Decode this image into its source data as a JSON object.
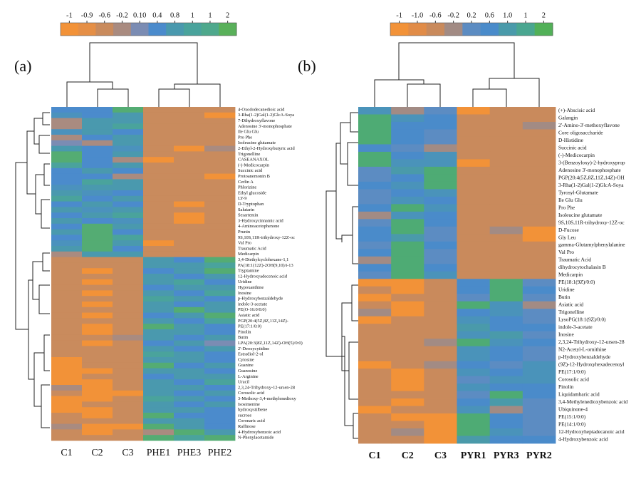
{
  "chart_data": [
    {
      "type": "heatmap",
      "panel_label": "(a)",
      "colorbar_ticks": [
        -1,
        -0.9,
        -0.6,
        -0.2,
        {
          "value": 0.1,
          "label": "0.10"
        },
        0.4,
        0.8,
        1,
        1,
        2
      ],
      "colorbar_colors": [
        "#f29238",
        "#e58f46",
        "#c98b5d",
        "#a98b80",
        "#7b8cb3",
        "#4b8bcc",
        "#4a99ae",
        "#4aa39c",
        "#4ea88c",
        "#59b05a"
      ],
      "columns": [
        "C1",
        "C2",
        "C3",
        "PHE1",
        "PHE3",
        "PHE2"
      ],
      "rows": [
        "4-Oxododecanedioic acid",
        "3-Rha(1-2)Gal(1-2)GlcA-Soya",
        "7-Dihydroxyflavone",
        "Adenosine 3'-monophosphate",
        "Ile Glu Glu",
        "Pro Phe",
        "Isoleucine glutamate",
        "2-Ethyl-2-Hydroxybutyric acid",
        "Trigonelline",
        "CASEANAXOL",
        "(-)-Medicocarpin",
        "Succinic acid",
        "Protoanemonin B",
        "Cerlin A",
        "Phlorizine",
        "Ethyl glucoside",
        "LY-9",
        "D-Tryptophan",
        "Salutarin",
        "Sesartemin",
        "3-Hydroxycinnamic acid",
        "4-Aminoacetophenone",
        "Prunin",
        "9S,10S,11R-trihydroxy-12Z-oc",
        "Val Pro",
        "Traumatic Acid",
        "Medicarpin",
        "3,4-Diethylcyclohexane-1,1",
        "PA(18:1(12Z)-2OH(9,10)/i-13",
        "Tryptamine",
        "12-Hydroxyadecenoic acid",
        "Uridine",
        "Hypoxanthine",
        "Inosine",
        "p-Hydroxybenzaldehyde",
        "indole-3-acetate",
        "PE(O-16:0/0:0)",
        "Asiatic acid",
        "PGP(20:4(5Z,8Z,11Z,14Z)-",
        "PE(17:1/0:0)",
        "Pinolin",
        "Butin",
        "LPA(20:3(8Z,11Z,14Z)-OH(5)/0:0)",
        "2'-Deoxycytidine",
        "Estradiol-2-ol",
        "Cytosine",
        "Guanine",
        "Guanosine",
        "L-Arginine",
        "Uracil",
        "2,3,24-Trihydroxy-12-ursen-28",
        "Corosolic acid",
        "3-Methoxy-3,4-methylenedioxy",
        "Isosimenine",
        "hydroxystilbene",
        "sucrose",
        "Coronaric acid",
        "Raffinose",
        "4-Hydroxybenzoic acid",
        "N-Phenylacetamide"
      ],
      "values": [
        [
          0.4,
          0.4,
          1.5,
          -0.6,
          -0.6,
          -0.6
        ],
        [
          0.6,
          0.4,
          0.8,
          -0.6,
          -0.6,
          -1
        ],
        [
          -0.2,
          0.8,
          0.8,
          -0.6,
          -0.6,
          -0.6
        ],
        [
          -0.2,
          0.8,
          1,
          -0.6,
          -0.6,
          -0.6
        ],
        [
          0.6,
          0.8,
          0.4,
          -0.6,
          -0.6,
          -0.6
        ],
        [
          -0.2,
          0.4,
          0.8,
          -0.6,
          -0.6,
          -0.6
        ],
        [
          0.1,
          -0.2,
          0.8,
          -0.6,
          -0.6,
          -0.6
        ],
        [
          0.8,
          0.4,
          0.6,
          -0.6,
          -1,
          -0.2
        ],
        [
          1.5,
          0.4,
          0.8,
          -0.6,
          -0.6,
          -0.6
        ],
        [
          1.5,
          0.4,
          -0.2,
          -1,
          -0.6,
          -0.6
        ],
        [
          1,
          0.4,
          0.8,
          -0.6,
          -0.6,
          -0.6
        ],
        [
          0.4,
          0.8,
          0.4,
          -0.6,
          -0.6,
          -0.6
        ],
        [
          0.4,
          0.4,
          -0.2,
          -0.6,
          -0.6,
          -1
        ],
        [
          0.4,
          1,
          0.8,
          -0.6,
          -0.6,
          -0.6
        ],
        [
          0.6,
          0.8,
          0.8,
          -0.6,
          -0.6,
          -0.6
        ],
        [
          0.8,
          0.6,
          0.4,
          -0.6,
          -0.6,
          -0.6
        ],
        [
          1,
          0.4,
          0.8,
          -0.6,
          -0.6,
          -0.6
        ],
        [
          0.4,
          0.8,
          0.4,
          -0.6,
          -1,
          -0.6
        ],
        [
          0.8,
          0.6,
          0.8,
          -0.6,
          -0.6,
          -0.6
        ],
        [
          0.4,
          0.8,
          1,
          -0.6,
          -1,
          -0.6
        ],
        [
          0.8,
          0.4,
          0.6,
          -0.6,
          -1,
          -0.6
        ],
        [
          0.4,
          1.5,
          0.8,
          -0.6,
          -0.6,
          -0.6
        ],
        [
          0.8,
          1.5,
          0.4,
          -0.6,
          -0.6,
          -0.6
        ],
        [
          0.4,
          1.5,
          1,
          -0.6,
          -0.6,
          -0.6
        ],
        [
          0.6,
          1.5,
          0.8,
          -1,
          -0.6,
          -0.6
        ],
        [
          0.8,
          1.5,
          0.4,
          -0.6,
          -0.6,
          -0.6
        ],
        [
          -0.2,
          0.8,
          0.8,
          -0.6,
          -0.6,
          -0.6
        ],
        [
          -0.6,
          -0.6,
          -0.6,
          0.8,
          0.4,
          1.5
        ],
        [
          -0.6,
          -0.6,
          -0.6,
          0.8,
          0.8,
          1
        ],
        [
          -0.6,
          -1,
          -0.6,
          0.4,
          0.8,
          1.5
        ],
        [
          -0.6,
          -0.6,
          -0.6,
          0.8,
          0.4,
          0.8
        ],
        [
          -0.6,
          -1,
          -0.6,
          0.8,
          1,
          0.4
        ],
        [
          -0.6,
          -0.6,
          -0.6,
          0.4,
          0.8,
          0.8
        ],
        [
          -0.6,
          -1,
          -0.6,
          0.8,
          0.4,
          1
        ],
        [
          -0.6,
          -0.6,
          -0.6,
          1,
          0.8,
          0.4
        ],
        [
          -0.6,
          -1,
          -0.6,
          0.8,
          0.4,
          0.8
        ],
        [
          -0.6,
          -0.6,
          -0.6,
          0.8,
          1.5,
          0.8
        ],
        [
          -0.6,
          -1,
          -0.6,
          0.4,
          0.8,
          1.5
        ],
        [
          -0.6,
          -0.6,
          -0.6,
          0.8,
          0.4,
          1
        ],
        [
          -0.6,
          -1,
          -0.6,
          1.5,
          0.8,
          0.4
        ],
        [
          -0.6,
          -1,
          -0.6,
          0.8,
          0.8,
          0.4
        ],
        [
          -0.6,
          -0.6,
          -0.2,
          0.8,
          0.4,
          0.8
        ],
        [
          -0.6,
          -1,
          -0.6,
          0.4,
          0.8,
          0.1
        ],
        [
          -0.6,
          -0.6,
          -0.6,
          0.8,
          0.4,
          0.8
        ],
        [
          -0.6,
          -0.6,
          -0.6,
          1,
          0.8,
          0.4
        ],
        [
          -1,
          -0.6,
          -0.6,
          0.8,
          0.8,
          0.4
        ],
        [
          -1,
          -0.6,
          -0.6,
          1.5,
          0.4,
          0.8
        ],
        [
          -1,
          -1,
          -0.6,
          0.8,
          0.8,
          0.4
        ],
        [
          -1,
          -0.6,
          -0.6,
          0.4,
          0.8,
          0.8
        ],
        [
          -1,
          -1,
          -0.6,
          0.8,
          0.4,
          1
        ],
        [
          -0.2,
          -1,
          -0.6,
          0.8,
          0.8,
          0.4
        ],
        [
          -0.6,
          -1,
          -1,
          0.8,
          0.4,
          0.8
        ],
        [
          -1,
          -1,
          -0.6,
          1,
          0.8,
          0.4
        ],
        [
          -1,
          -0.6,
          -0.6,
          0.8,
          0.4,
          0.8
        ],
        [
          -1,
          -1,
          -0.6,
          0.8,
          0.8,
          0.4
        ],
        [
          -0.6,
          -1,
          -0.6,
          1.5,
          0.4,
          0.4
        ],
        [
          -0.6,
          -0.6,
          -0.6,
          0.8,
          0.8,
          0.4
        ],
        [
          -0.2,
          -1,
          -1,
          1.5,
          0.8,
          0.4
        ],
        [
          -0.6,
          -1,
          -0.6,
          -0.2,
          1.5,
          0.8
        ],
        [
          -0.6,
          -0.6,
          -0.6,
          1.5,
          1,
          1.5
        ]
      ]
    },
    {
      "type": "heatmap",
      "panel_label": "(b)",
      "colorbar_ticks": [
        -1,
        {
          "value": -1,
          "label": "-1.0"
        },
        -0.6,
        -0.2,
        0.2,
        0.6,
        {
          "value": 1,
          "label": "1.0"
        },
        1,
        2
      ],
      "colorbar_colors": [
        "#f29238",
        "#e18c48",
        "#c98a5c",
        "#a28b84",
        "#5c8cc2",
        "#4a8bca",
        "#4a9aaa",
        "#4aa690",
        "#52b058"
      ],
      "columns": [
        "C1",
        "C2",
        "C3",
        "PYR1",
        "PYR3",
        "PYR2"
      ],
      "rows": [
        "(+)-Abscisic acid",
        "Galangin",
        "2'-Amino-3'-methoxyflavone",
        "Core oligosaccharide",
        "D-Histidine",
        "Succinic acid",
        "(-)-Medicocarpin",
        "3-(Benzoyloxy)-2-hydroxyprop",
        "Adenosine 3'-monophosphate",
        "PGP(20:4(5Z,8Z,11Z,14Z)-OH",
        "3-Rha(1-2)Gal(1-2)GlcA-Soya",
        "Tyrosyl-Glutamate",
        "Ile Glu Glu",
        "Pro Phe",
        "Isoleucine glutamate",
        "9S,10S,11R-trihydroxy-12Z-oc",
        "D-Fucose",
        "Gly Leu",
        "gamma-Glutamylphenylalanine",
        "Val Pro",
        "Traumatic Acid",
        "dihydrocytochalasin B",
        "Medicarpin",
        "PE(18:1(9Z)/0:0)",
        "Uridine",
        "Butin",
        "Asiatic acid",
        "Trigonelline",
        "LysoPG(18:1(9Z)/0:0)",
        "indole-3-acetate",
        "Inosine",
        "2,3,24-Trihydroxy-12-ursen-28",
        "N2-Acetyl-L-ornithine",
        "p-Hydroxybenzaldehyde",
        "(9Z)-12-Hydroxyhexadecenoyl",
        "PE(17:1/0:0)",
        "Corosolic acid",
        "Pinolin",
        "Liquidambaric acid",
        "3,4-Methylenedioxybenzoic acid",
        "Ubiquinone-4",
        "PE(15:1/0:0)",
        "PE(14:1/0:0)",
        "12-Hydroxyheptadecanoic acid",
        "4-Hydroxybenzoic acid"
      ],
      "values": [
        [
          0.8,
          -0.2,
          0.2,
          -1,
          -0.6,
          -0.6
        ],
        [
          1.5,
          0.8,
          0.6,
          -0.6,
          -0.6,
          -0.6
        ],
        [
          1.5,
          0.6,
          0.6,
          -0.6,
          -0.6,
          -0.2
        ],
        [
          1.5,
          0.6,
          0.2,
          -0.6,
          -0.6,
          -0.6
        ],
        [
          1.5,
          0.6,
          0.2,
          -0.6,
          -0.6,
          -0.6
        ],
        [
          0.6,
          0.2,
          -0.2,
          -0.6,
          -0.6,
          -0.6
        ],
        [
          1.5,
          0.6,
          0.8,
          -0.6,
          -0.6,
          -0.6
        ],
        [
          1.5,
          0.8,
          0.8,
          -1,
          -0.6,
          -0.6
        ],
        [
          0.2,
          1,
          1.5,
          -0.6,
          -0.6,
          -0.6
        ],
        [
          0.2,
          0.6,
          1.5,
          -0.6,
          -0.6,
          -0.6
        ],
        [
          0.6,
          0.8,
          1.5,
          -0.6,
          -0.6,
          -0.6
        ],
        [
          0.2,
          0.6,
          0.8,
          -0.6,
          -0.6,
          -0.6
        ],
        [
          0.2,
          0.8,
          0.6,
          -0.6,
          -0.6,
          -0.6
        ],
        [
          0.6,
          1.5,
          0.8,
          -0.6,
          -0.6,
          -0.6
        ],
        [
          -0.2,
          0.8,
          0.6,
          -0.6,
          -0.6,
          -0.6
        ],
        [
          0.2,
          1.5,
          0.6,
          -0.6,
          -0.6,
          -0.6
        ],
        [
          0.6,
          1.5,
          0.2,
          -0.6,
          -0.2,
          -1
        ],
        [
          0.6,
          1,
          0.2,
          -0.6,
          -0.6,
          -1
        ],
        [
          0.2,
          1.5,
          0.6,
          -0.6,
          -0.6,
          -0.6
        ],
        [
          0.6,
          1.5,
          0.2,
          -0.6,
          -0.6,
          -0.6
        ],
        [
          -0.2,
          1.5,
          0.2,
          -0.6,
          -0.6,
          -0.6
        ],
        [
          0.6,
          1.5,
          0.6,
          -0.6,
          -0.6,
          -0.6
        ],
        [
          0.2,
          1.5,
          0.8,
          -0.6,
          -0.6,
          -0.6
        ],
        [
          -1,
          -1,
          -0.6,
          0.6,
          1.5,
          0.2
        ],
        [
          -0.6,
          -1,
          -0.6,
          0.6,
          1.5,
          0.6
        ],
        [
          -1,
          -0.6,
          -0.6,
          0.2,
          1.5,
          0.2
        ],
        [
          -0.6,
          -1,
          -0.6,
          1.5,
          0.8,
          -0.2
        ],
        [
          -0.2,
          -1,
          -0.6,
          0.6,
          0.8,
          0.2
        ],
        [
          -1,
          -0.6,
          -0.6,
          0.8,
          0.6,
          0.2
        ],
        [
          -0.6,
          -0.6,
          -0.6,
          1,
          0.6,
          0.6
        ],
        [
          -0.6,
          -0.6,
          -0.6,
          0.8,
          1,
          0.2
        ],
        [
          -0.6,
          -0.6,
          -0.2,
          1.5,
          0.8,
          0.6
        ],
        [
          -0.6,
          -0.6,
          -0.6,
          0.8,
          0.6,
          0.2
        ],
        [
          -0.6,
          -0.6,
          -0.6,
          0.8,
          0.6,
          0.2
        ],
        [
          -1,
          -0.6,
          -0.2,
          0.6,
          0.2,
          0.8
        ],
        [
          -0.6,
          -1,
          -0.6,
          0.8,
          0.6,
          0.8
        ],
        [
          -0.6,
          -1,
          -0.6,
          0.2,
          0.8,
          0.8
        ],
        [
          -0.6,
          -1,
          -0.6,
          0.8,
          0.6,
          0.6
        ],
        [
          -0.6,
          -0.6,
          -0.6,
          0.2,
          1.5,
          0.6
        ],
        [
          -0.6,
          -1,
          -0.6,
          0.6,
          1,
          0.2
        ],
        [
          -1,
          -0.6,
          -0.6,
          0.8,
          -0.2,
          0.2
        ],
        [
          -0.6,
          -1,
          -1,
          1.5,
          0.6,
          0.2
        ],
        [
          -0.6,
          -0.6,
          -1,
          1.5,
          0.6,
          0.2
        ],
        [
          -0.6,
          -0.2,
          -1,
          1.5,
          0.8,
          0.2
        ],
        [
          -0.6,
          -0.6,
          -1,
          1,
          0.6,
          0.6
        ]
      ]
    }
  ]
}
